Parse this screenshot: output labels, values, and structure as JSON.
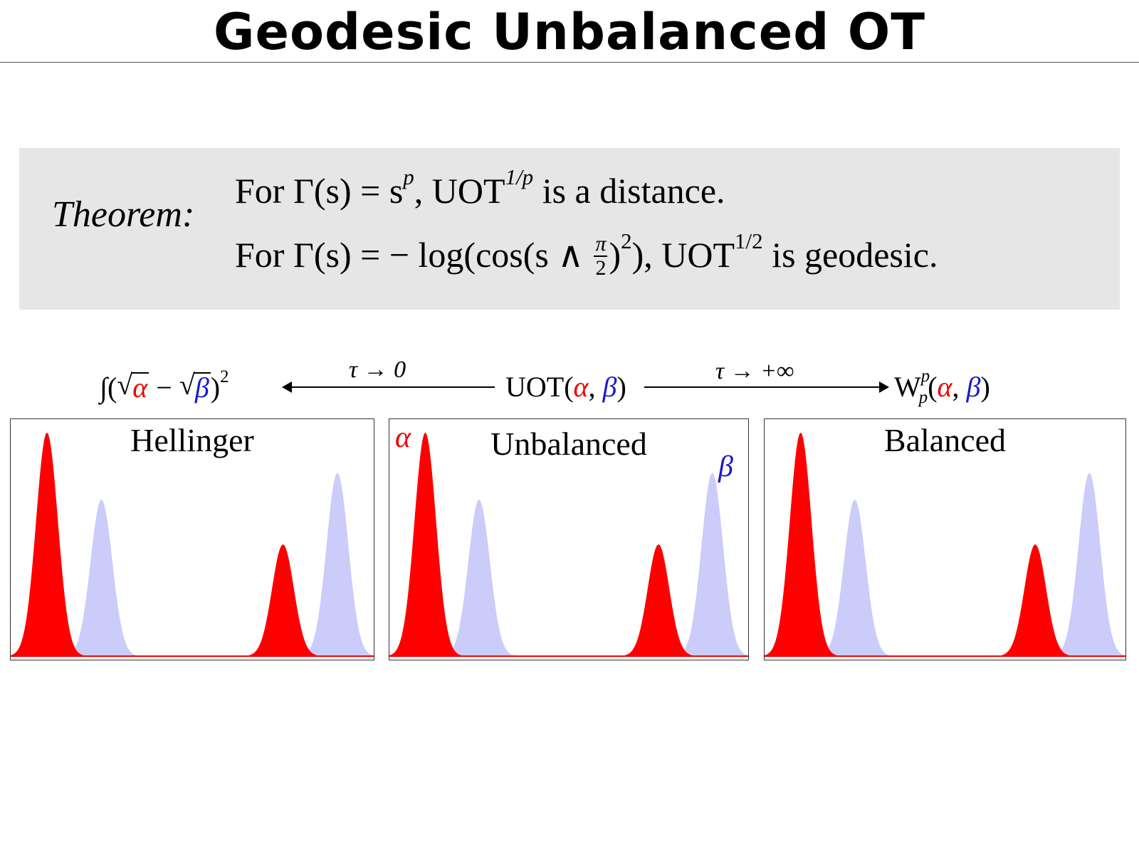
{
  "slide": {
    "title": "Geodesic Unbalanced OT"
  },
  "theorem": {
    "label": "Theorem:",
    "line1": {
      "for_text": "For",
      "gamma_s": "Γ(s) = s",
      "exp_p": "p",
      "uot_text": ", UOT",
      "exp_1p": "1/p",
      "tail": " is a distance."
    },
    "line2": {
      "for_text": "For",
      "gamma_s": "Γ(s) = − log(cos(s ∧ ",
      "frac_num": "π",
      "frac_den": "2",
      "close": ")",
      "exp_2": "2",
      "uot_text": "), UOT",
      "exp_half": "1/2",
      "tail": " is geodesic."
    }
  },
  "relations": {
    "hellinger_formula": {
      "integral": "∫(",
      "radic": "√",
      "alpha": "α",
      "minus": " − ",
      "beta": "β",
      "close": ")",
      "exp": "2"
    },
    "tau_zero": "τ → 0",
    "uot_formula": {
      "name": "UOT(",
      "alpha": "α",
      "comma": ", ",
      "beta": "β",
      "close": ")"
    },
    "tau_inf": "τ → +∞",
    "wasserstein_formula": {
      "name": "W",
      "sup": "p",
      "sub": "p",
      "open": "(",
      "alpha": "α",
      "comma": ", ",
      "beta": "β",
      "close": ")"
    }
  },
  "panels": [
    {
      "id": "hellinger",
      "title": "Hellinger"
    },
    {
      "id": "unbalanced",
      "title": "Unbalanced",
      "alpha_label": "α",
      "beta_label": "β"
    },
    {
      "id": "balanced",
      "title": "Balanced"
    }
  ],
  "colors": {
    "alpha": "#ff0000",
    "beta": "#ccccfa",
    "alpha_text": "#ee0000",
    "beta_text": "#1a1acc",
    "theorem_box": "#e6e6e6"
  },
  "density": {
    "x_range": [
      0,
      1
    ],
    "y_range": [
      0,
      1.05
    ],
    "alpha_peaks": [
      {
        "center": 0.1,
        "height": 1.0,
        "sigma": 0.03
      },
      {
        "center": 0.75,
        "height": 0.5,
        "sigma": 0.03
      }
    ],
    "beta_peaks": [
      {
        "center": 0.25,
        "height": 0.7,
        "sigma": 0.03
      },
      {
        "center": 0.9,
        "height": 0.82,
        "sigma": 0.03
      }
    ]
  }
}
